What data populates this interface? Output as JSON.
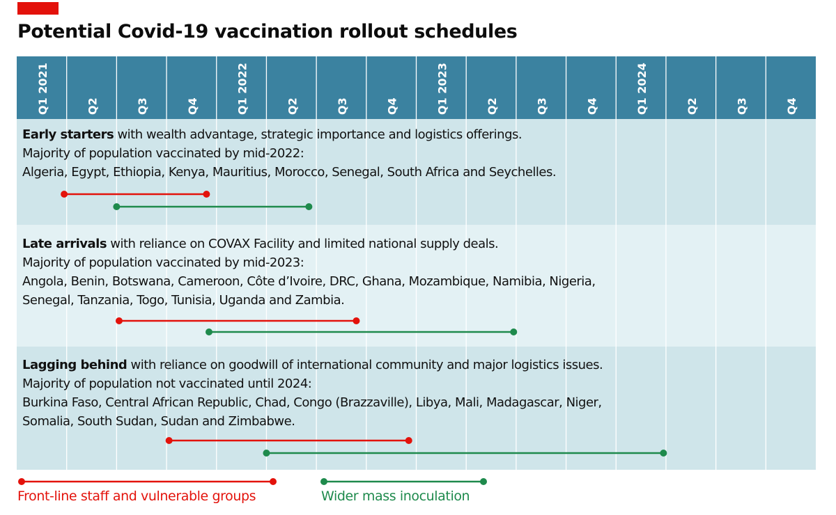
{
  "title": "Potential Covid-19 vaccination rollout schedules",
  "colors": {
    "accent": "#e3120b",
    "header_bg": "#3b82a0",
    "row_dark": "#cfe5ea",
    "row_light": "#e3f1f4",
    "grid_line": "#ffffff",
    "frontline": "#e3120b",
    "mass": "#1e8a4c"
  },
  "groups": [
    {
      "name": "Early starters",
      "description": " with wealth advantage, strategic importance and logistics offerings.",
      "majority_line": "Majority of population vaccinated by mid-2022:",
      "countries_lines": [
        "Algeria, Egypt, Ethiopia, Kenya, Mauritius, Morocco, Senegal, South Africa and Seychelles."
      ]
    },
    {
      "name": "Late arrivals",
      "description": " with reliance on COVAX Facility and limited national supply deals.",
      "majority_line": "Majority of population vaccinated by mid-2023:",
      "countries_lines": [
        "Angola, Benin, Botswana, Cameroon, Côte d’Ivoire, DRC, Ghana, Mozambique, Namibia, Nigeria,",
        "Senegal, Tanzania, Togo, Tunisia, Uganda and Zambia."
      ]
    },
    {
      "name": "Lagging behind",
      "description": " with reliance on goodwill of international community and major logistics issues.",
      "majority_line": "Majority of population not vaccinated until 2024:",
      "countries_lines": [
        "Burkina Faso, Central African Republic, Chad, Congo (Brazzaville), Libya, Mali, Madagascar, Niger,",
        "Somalia, South Sudan, Sudan and Zimbabwe."
      ]
    }
  ],
  "legend": {
    "frontline_label": "Front-line staff and vulnerable groups",
    "mass_label": "Wider mass inoculation"
  },
  "chart_data": {
    "type": "timeline",
    "title": "Potential Covid-19 vaccination rollout schedules",
    "x_unit": "quarters (0 = start of Q1 2021, 12 = end of 2023, 16 = end of 2024)",
    "xlim": [
      0,
      16
    ],
    "categories": [
      "Q1 2021",
      "Q2",
      "Q3",
      "Q4",
      "Q1 2022",
      "Q2",
      "Q3",
      "Q4",
      "Q1 2023",
      "Q2",
      "Q3",
      "Q4",
      "Q1 2024",
      "Q2",
      "Q3",
      "Q4"
    ],
    "series": [
      {
        "name": "Front-line staff and vulnerable groups",
        "key": "frontline",
        "ranges": [
          {
            "group": "Early starters",
            "start": 0.95,
            "end": 3.8
          },
          {
            "group": "Late arrivals",
            "start": 2.05,
            "end": 6.8
          },
          {
            "group": "Lagging behind",
            "start": 3.05,
            "end": 7.85
          }
        ]
      },
      {
        "name": "Wider mass inoculation",
        "key": "mass",
        "ranges": [
          {
            "group": "Early starters",
            "start": 2.0,
            "end": 5.85
          },
          {
            "group": "Late arrivals",
            "start": 3.85,
            "end": 9.95
          },
          {
            "group": "Lagging behind",
            "start": 5.0,
            "end": 12.95
          }
        ]
      }
    ]
  }
}
